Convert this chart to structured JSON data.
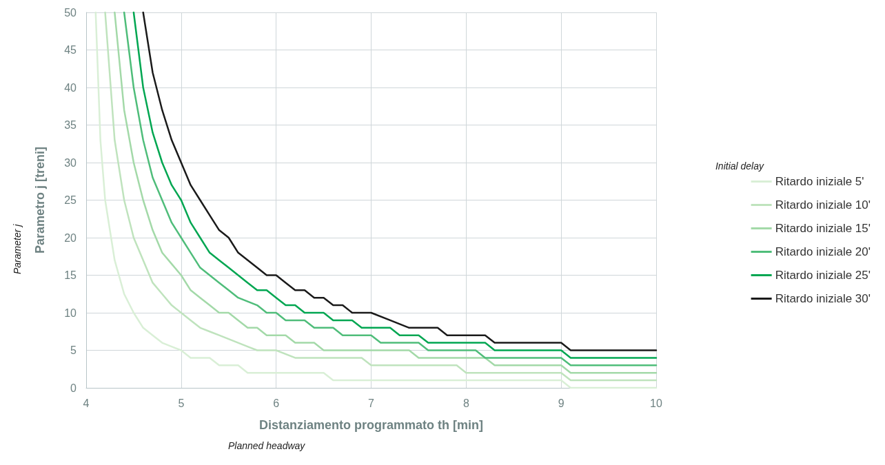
{
  "chart_data": {
    "type": "line",
    "xlabel": "Distanziamento programmato th [min]",
    "ylabel": "Parametro j [treni]",
    "legend_title": "Initial delay",
    "annotations": [
      "Planned headway",
      "Parameter j"
    ],
    "xlim": [
      4,
      10
    ],
    "xticks": [
      4,
      5,
      6,
      7,
      8,
      9,
      10
    ],
    "ylim": [
      0,
      50
    ],
    "yticks": [
      0,
      5,
      10,
      15,
      20,
      25,
      30,
      35,
      40,
      45,
      50
    ],
    "grid": true,
    "legend": "right",
    "marker": "none",
    "line_style": "solid",
    "series": [
      {
        "name": "Ritardo iniziale 5'",
        "color": "#d9efd6",
        "x": [
          4.1,
          4.15,
          4.2,
          4.3,
          4.4,
          4.5,
          4.6,
          4.7,
          4.8,
          4.9,
          5.0,
          5.1,
          5.3,
          5.4,
          5.6,
          5.7,
          6.5,
          6.6,
          9.0,
          9.1,
          10
        ],
        "values": [
          50,
          33,
          25,
          17,
          12.5,
          10,
          8,
          7,
          6,
          5.5,
          5,
          4,
          4,
          3,
          3,
          2,
          2,
          1,
          1,
          0,
          0
        ]
      },
      {
        "name": "Ritardo iniziale 10'",
        "color": "#bfe3bd",
        "x": [
          4.2,
          4.3,
          4.4,
          4.5,
          4.6,
          4.7,
          4.8,
          4.9,
          5.0,
          5.1,
          5.2,
          5.3,
          5.4,
          5.5,
          5.6,
          5.7,
          5.8,
          6.0,
          6.2,
          6.9,
          7.0,
          7.9,
          8.0,
          9.0,
          9.1,
          10
        ],
        "values": [
          50,
          33,
          25,
          20,
          17,
          14,
          12.5,
          11,
          10,
          9,
          8,
          7.5,
          7,
          6.5,
          6,
          5.5,
          5,
          5,
          4,
          4,
          3,
          3,
          2,
          2,
          1,
          1
        ]
      },
      {
        "name": "Ritardo iniziale 15'",
        "color": "#a3d9a8",
        "x": [
          4.3,
          4.4,
          4.5,
          4.6,
          4.7,
          4.8,
          4.9,
          5.0,
          5.1,
          5.2,
          5.3,
          5.4,
          5.5,
          5.6,
          5.7,
          5.8,
          5.9,
          6.1,
          6.2,
          6.4,
          6.5,
          7.4,
          7.5,
          8.2,
          8.3,
          9.0,
          9.1,
          10
        ],
        "values": [
          50,
          37,
          30,
          25,
          21,
          18,
          16.5,
          15,
          13,
          12,
          11,
          10,
          10,
          9,
          8,
          8,
          7,
          7,
          6,
          6,
          5,
          5,
          4,
          4,
          3,
          3,
          2,
          2
        ]
      },
      {
        "name": "Ritardo iniziale 20'",
        "color": "#4fbd7a",
        "x": [
          4.4,
          4.5,
          4.6,
          4.7,
          4.8,
          4.9,
          5.0,
          5.1,
          5.2,
          5.3,
          5.4,
          5.5,
          5.6,
          5.7,
          5.8,
          5.9,
          6.0,
          6.1,
          6.3,
          6.4,
          6.6,
          6.7,
          7.0,
          7.1,
          7.5,
          7.6,
          8.1,
          8.2,
          9.0,
          9.1,
          10
        ],
        "values": [
          50,
          40,
          33,
          28,
          25,
          22,
          20,
          18,
          16,
          15,
          14,
          13,
          12,
          11.5,
          11,
          10,
          10,
          9,
          9,
          8,
          8,
          7,
          7,
          6,
          6,
          5,
          5,
          4,
          4,
          3,
          3
        ]
      },
      {
        "name": "Ritardo iniziale 25'",
        "color": "#00a651",
        "x": [
          4.5,
          4.6,
          4.7,
          4.8,
          4.9,
          5.0,
          5.1,
          5.2,
          5.3,
          5.4,
          5.5,
          5.6,
          5.7,
          5.8,
          5.9,
          6.0,
          6.1,
          6.2,
          6.3,
          6.5,
          6.6,
          6.8,
          6.9,
          7.2,
          7.3,
          7.5,
          7.6,
          8.2,
          8.3,
          9.0,
          9.1,
          10
        ],
        "values": [
          50,
          40,
          34,
          30,
          27,
          25,
          22,
          20,
          18,
          17,
          16,
          15,
          14,
          13,
          13,
          12,
          11,
          11,
          10,
          10,
          9,
          9,
          8,
          8,
          7,
          7,
          6,
          6,
          5,
          5,
          4,
          4
        ]
      },
      {
        "name": "Ritardo iniziale 30'",
        "color": "#1a1a1a",
        "x": [
          4.6,
          4.7,
          4.8,
          4.9,
          5.0,
          5.1,
          5.2,
          5.3,
          5.4,
          5.5,
          5.6,
          5.8,
          5.9,
          6.0,
          6.1,
          6.2,
          6.3,
          6.4,
          6.5,
          6.6,
          6.7,
          6.8,
          7.0,
          7.2,
          7.4,
          7.7,
          7.8,
          8.2,
          8.3,
          9.0,
          9.1,
          10
        ],
        "values": [
          50,
          42,
          37,
          33,
          30,
          27,
          25,
          23,
          21,
          20,
          18,
          16,
          15,
          15,
          14,
          13,
          13,
          12,
          12,
          11,
          11,
          10,
          10,
          9,
          8,
          8,
          7,
          7,
          6,
          6,
          5,
          5
        ]
      }
    ]
  }
}
